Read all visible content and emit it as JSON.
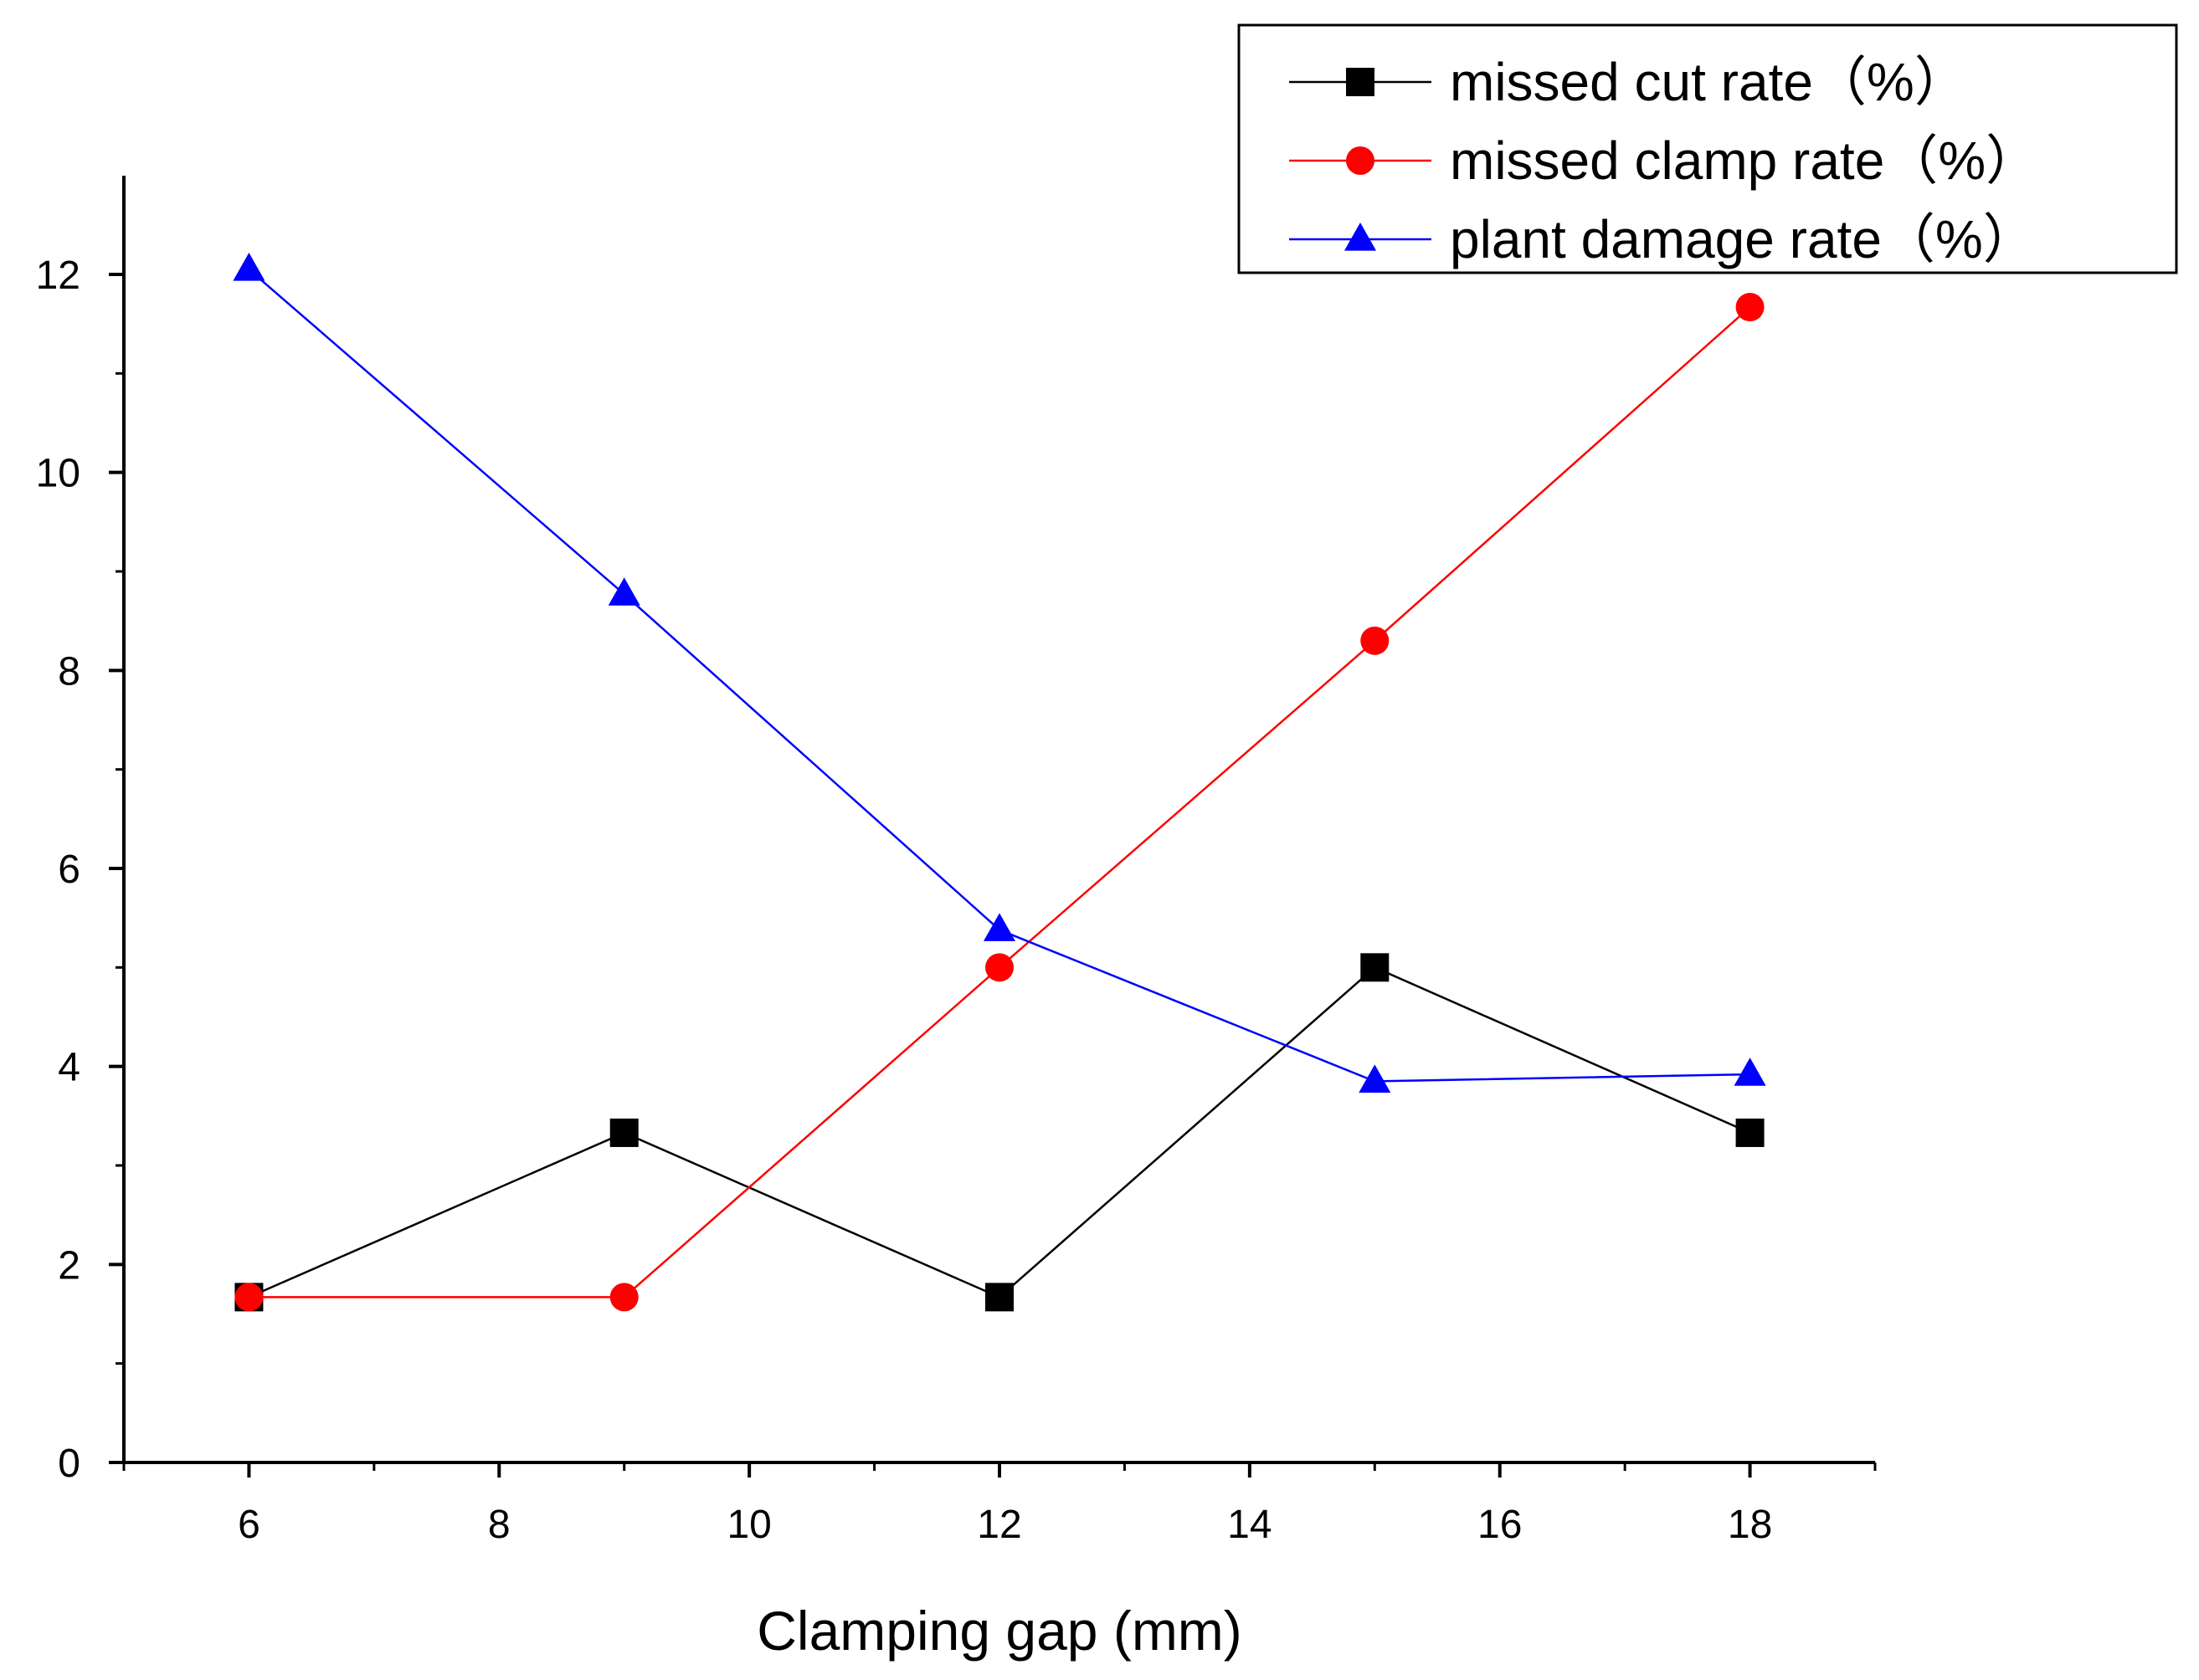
{
  "chart_data": {
    "type": "line",
    "title": "",
    "xlabel": "Clamping gap (mm)",
    "ylabel": "",
    "x": [
      6,
      9,
      12,
      15,
      18
    ],
    "xlim": [
      5,
      19
    ],
    "ylim": [
      0,
      13
    ],
    "x_ticks": [
      6,
      8,
      10,
      12,
      14,
      16,
      18
    ],
    "y_ticks": [
      0,
      2,
      4,
      6,
      8,
      10,
      12
    ],
    "grid": false,
    "legend_position": "top-right",
    "series": [
      {
        "name": "missed cut rate（%）",
        "color": "#000000",
        "marker": "square",
        "values": [
          1.67,
          3.33,
          1.67,
          5.0,
          3.33
        ]
      },
      {
        "name": "missed clamp rate（%）",
        "color": "#ff0000",
        "marker": "circle",
        "values": [
          1.67,
          1.67,
          5.0,
          8.3,
          11.67
        ]
      },
      {
        "name": "plant damage rate（%）",
        "color": "#0000ff",
        "marker": "triangle",
        "values": [
          12.05,
          8.77,
          5.38,
          3.85,
          3.92
        ]
      }
    ]
  }
}
